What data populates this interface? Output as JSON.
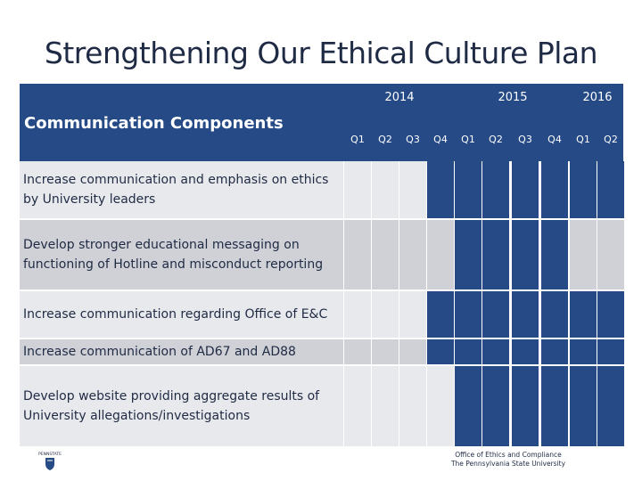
{
  "title": "Strengthening Our Ethical Culture Plan",
  "header": {
    "components_label": "Communication Components",
    "years": [
      "2014",
      "2015",
      "2016"
    ],
    "quarters": [
      "Q1",
      "Q2",
      "Q3",
      "Q4",
      "Q1",
      "Q2",
      "Q3",
      "Q4",
      "Q1",
      "Q2"
    ]
  },
  "rows": [
    {
      "label": "Increase communication and emphasis on ethics by University leaders",
      "active": [
        false,
        false,
        false,
        true,
        true,
        true,
        true,
        true,
        true,
        true
      ]
    },
    {
      "label": "Develop stronger educational messaging on functioning of Hotline and misconduct reporting",
      "active": [
        false,
        false,
        false,
        false,
        true,
        true,
        true,
        true,
        false,
        false
      ]
    },
    {
      "label": "Increase communication regarding Office of E&C",
      "active": [
        false,
        false,
        false,
        true,
        true,
        true,
        true,
        true,
        true,
        true
      ]
    },
    {
      "label": "Increase communication of AD67 and AD88",
      "active": [
        false,
        false,
        false,
        true,
        true,
        true,
        true,
        true,
        true,
        true
      ]
    },
    {
      "label": "Develop website providing aggregate results of University allegations/investigations",
      "active": [
        false,
        false,
        false,
        false,
        true,
        true,
        true,
        true,
        true,
        true
      ]
    }
  ],
  "footer": {
    "line1": "Office of Ethics and Compliance",
    "line2": "The Pennsylvania State University"
  },
  "logo_text": "PENNSTATE",
  "colors": {
    "header": "#254a86",
    "active": "#254a86",
    "inactive_light": "#e8e9ec",
    "inactive_dark": "#cfd1d6"
  }
}
